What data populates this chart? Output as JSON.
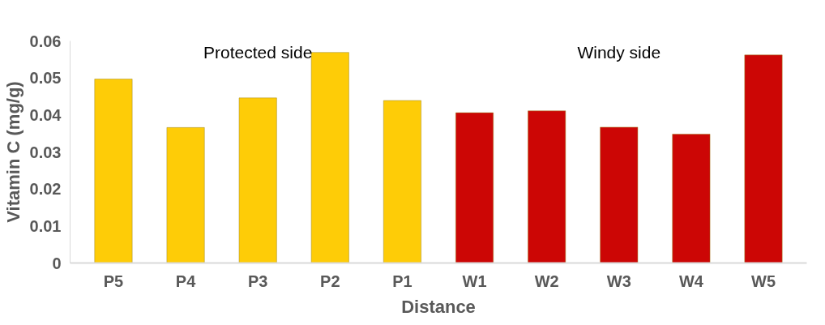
{
  "chart_data": {
    "type": "bar",
    "xlabel": "Distance",
    "ylabel": "Vitamin C (mg/g)",
    "categories": [
      "P5",
      "P4",
      "P3",
      "P2",
      "P1",
      "W1",
      "W2",
      "W3",
      "W4",
      "W5"
    ],
    "values": [
      0.0497,
      0.0366,
      0.0446,
      0.0569,
      0.0439,
      0.0406,
      0.0411,
      0.0367,
      0.0348,
      0.0562
    ],
    "colors": [
      "#fecc07",
      "#fecc07",
      "#fecc07",
      "#fecc07",
      "#fecc07",
      "#cc0605",
      "#cc0605",
      "#cc0605",
      "#cc0605",
      "#cc0605"
    ],
    "ylim": [
      0,
      0.06
    ],
    "yticks": [
      0,
      0.01,
      0.02,
      0.03,
      0.04,
      0.05,
      0.06
    ],
    "annotations": [
      "Protected side",
      "Windy side"
    ],
    "grid": false
  }
}
